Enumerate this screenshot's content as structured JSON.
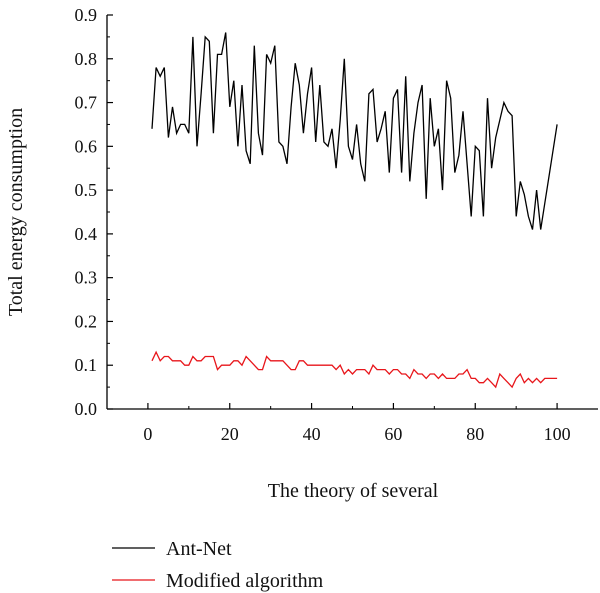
{
  "chart_data": {
    "type": "line",
    "title": "",
    "xlabel": "The theory of several",
    "ylabel": "Total energy consumption",
    "xlim": [
      -10,
      110
    ],
    "ylim": [
      0.0,
      0.9
    ],
    "xticks": [
      0,
      20,
      40,
      60,
      80,
      100
    ],
    "yticks": [
      0.0,
      0.1,
      0.2,
      0.3,
      0.4,
      0.5,
      0.6,
      0.7,
      0.8,
      0.9
    ],
    "xtick_labels": [
      "0",
      "20",
      "40",
      "60",
      "80",
      "100"
    ],
    "ytick_labels": [
      "0.0",
      "0.1",
      "0.2",
      "0.3",
      "0.4",
      "0.5",
      "0.6",
      "0.7",
      "0.8",
      "0.9"
    ],
    "grid": false,
    "legend_position": "bottom-left, below the plot",
    "series": [
      {
        "name": "Ant-Net",
        "color": "#000000",
        "x": [
          1,
          2,
          3,
          4,
          5,
          6,
          7,
          8,
          9,
          10,
          11,
          12,
          13,
          14,
          15,
          16,
          17,
          18,
          19,
          20,
          21,
          22,
          23,
          24,
          25,
          26,
          27,
          28,
          29,
          30,
          31,
          32,
          33,
          34,
          35,
          36,
          37,
          38,
          39,
          40,
          41,
          42,
          43,
          44,
          45,
          46,
          47,
          48,
          49,
          50,
          51,
          52,
          53,
          54,
          55,
          56,
          57,
          58,
          59,
          60,
          61,
          62,
          63,
          64,
          65,
          66,
          67,
          68,
          69,
          70,
          71,
          72,
          73,
          74,
          75,
          76,
          77,
          78,
          79,
          80,
          81,
          82,
          83,
          84,
          85,
          86,
          87,
          88,
          89,
          90,
          91,
          92,
          93,
          94,
          95,
          96,
          97,
          98,
          99,
          100
        ],
        "values": [
          0.64,
          0.78,
          0.76,
          0.78,
          0.62,
          0.69,
          0.63,
          0.65,
          0.65,
          0.63,
          0.85,
          0.6,
          0.72,
          0.85,
          0.84,
          0.63,
          0.81,
          0.81,
          0.86,
          0.69,
          0.75,
          0.6,
          0.74,
          0.59,
          0.56,
          0.83,
          0.63,
          0.58,
          0.81,
          0.79,
          0.83,
          0.61,
          0.6,
          0.56,
          0.69,
          0.79,
          0.74,
          0.63,
          0.72,
          0.78,
          0.61,
          0.74,
          0.61,
          0.6,
          0.64,
          0.55,
          0.66,
          0.8,
          0.6,
          0.57,
          0.65,
          0.56,
          0.52,
          0.72,
          0.73,
          0.61,
          0.64,
          0.68,
          0.54,
          0.71,
          0.73,
          0.54,
          0.76,
          0.52,
          0.63,
          0.7,
          0.74,
          0.48,
          0.71,
          0.6,
          0.64,
          0.5,
          0.75,
          0.71,
          0.54,
          0.58,
          0.68,
          0.56,
          0.44,
          0.6,
          0.59,
          0.44,
          0.71,
          0.55,
          0.62,
          0.66,
          0.7,
          0.68,
          0.67,
          0.44,
          0.52,
          0.49,
          0.44,
          0.41,
          0.5,
          0.41,
          0.47,
          0.53,
          0.59,
          0.65
        ]
      },
      {
        "name": "Modified algorithm",
        "color": "#e8161b",
        "x": [
          1,
          2,
          3,
          4,
          5,
          6,
          7,
          8,
          9,
          10,
          11,
          12,
          13,
          14,
          15,
          16,
          17,
          18,
          19,
          20,
          21,
          22,
          23,
          24,
          25,
          26,
          27,
          28,
          29,
          30,
          31,
          32,
          33,
          34,
          35,
          36,
          37,
          38,
          39,
          40,
          41,
          42,
          43,
          44,
          45,
          46,
          47,
          48,
          49,
          50,
          51,
          52,
          53,
          54,
          55,
          56,
          57,
          58,
          59,
          60,
          61,
          62,
          63,
          64,
          65,
          66,
          67,
          68,
          69,
          70,
          71,
          72,
          73,
          74,
          75,
          76,
          77,
          78,
          79,
          80,
          81,
          82,
          83,
          84,
          85,
          86,
          87,
          88,
          89,
          90,
          91,
          92,
          93,
          94,
          95,
          96,
          97,
          98,
          99,
          100
        ],
        "values": [
          0.11,
          0.13,
          0.11,
          0.12,
          0.12,
          0.11,
          0.11,
          0.11,
          0.1,
          0.1,
          0.12,
          0.11,
          0.11,
          0.12,
          0.12,
          0.12,
          0.09,
          0.1,
          0.1,
          0.1,
          0.11,
          0.11,
          0.1,
          0.12,
          0.11,
          0.1,
          0.09,
          0.09,
          0.12,
          0.11,
          0.11,
          0.11,
          0.11,
          0.1,
          0.09,
          0.09,
          0.11,
          0.11,
          0.1,
          0.1,
          0.1,
          0.1,
          0.1,
          0.1,
          0.1,
          0.09,
          0.1,
          0.08,
          0.09,
          0.08,
          0.09,
          0.09,
          0.09,
          0.08,
          0.1,
          0.09,
          0.09,
          0.09,
          0.08,
          0.09,
          0.09,
          0.08,
          0.08,
          0.07,
          0.09,
          0.08,
          0.08,
          0.07,
          0.08,
          0.08,
          0.07,
          0.08,
          0.07,
          0.07,
          0.07,
          0.08,
          0.08,
          0.09,
          0.07,
          0.07,
          0.06,
          0.06,
          0.07,
          0.06,
          0.05,
          0.08,
          0.07,
          0.06,
          0.05,
          0.07,
          0.08,
          0.06,
          0.07,
          0.06,
          0.07,
          0.06,
          0.07,
          0.07,
          0.07,
          0.07
        ]
      }
    ]
  }
}
